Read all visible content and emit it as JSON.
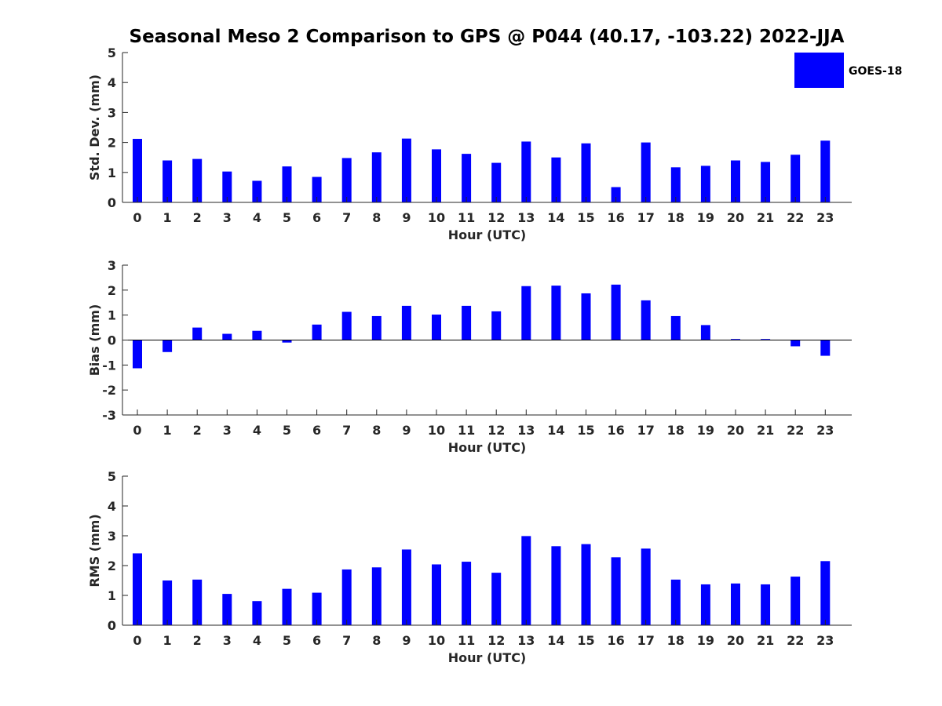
{
  "title": "Seasonal Meso 2 Comparison to GPS @ P044 (40.17, -103.22) 2022-JJA",
  "legend": {
    "label": "GOES-18",
    "color": "#0000ff",
    "placement": "top-right"
  },
  "chart_data": [
    {
      "type": "bar",
      "xlabel": "Hour (UTC)",
      "ylabel": "Std. Dev. (mm)",
      "ylim": [
        0,
        5
      ],
      "yticks": [
        0,
        1,
        2,
        3,
        4,
        5
      ],
      "categories": [
        "0",
        "1",
        "2",
        "3",
        "4",
        "5",
        "6",
        "7",
        "8",
        "9",
        "10",
        "11",
        "12",
        "13",
        "14",
        "15",
        "16",
        "17",
        "18",
        "19",
        "20",
        "21",
        "22",
        "23"
      ],
      "series": [
        {
          "name": "GOES-18",
          "values": [
            2.12,
            1.4,
            1.45,
            1.03,
            0.72,
            1.2,
            0.85,
            1.48,
            1.67,
            2.13,
            1.77,
            1.62,
            1.32,
            2.03,
            1.5,
            1.97,
            0.51,
            2.0,
            1.17,
            1.22,
            1.4,
            1.35,
            1.59,
            2.06
          ]
        }
      ],
      "grid": false
    },
    {
      "type": "bar",
      "xlabel": "Hour (UTC)",
      "ylabel": "Bias (mm)",
      "ylim": [
        -3,
        3
      ],
      "yticks": [
        -3,
        -2,
        -1,
        0,
        1,
        2,
        3
      ],
      "categories": [
        "0",
        "1",
        "2",
        "3",
        "4",
        "5",
        "6",
        "7",
        "8",
        "9",
        "10",
        "11",
        "12",
        "13",
        "14",
        "15",
        "16",
        "17",
        "18",
        "19",
        "20",
        "21",
        "22",
        "23"
      ],
      "series": [
        {
          "name": "GOES-18",
          "values": [
            -1.13,
            -0.48,
            0.5,
            0.25,
            0.37,
            -0.1,
            0.62,
            1.13,
            0.96,
            1.37,
            1.02,
            1.37,
            1.15,
            2.16,
            2.18,
            1.87,
            2.22,
            1.59,
            0.96,
            0.6,
            0.04,
            0.04,
            -0.25,
            -0.63
          ]
        }
      ],
      "grid": false
    },
    {
      "type": "bar",
      "xlabel": "Hour (UTC)",
      "ylabel": "RMS (mm)",
      "ylim": [
        0,
        5
      ],
      "yticks": [
        0,
        1,
        2,
        3,
        4,
        5
      ],
      "categories": [
        "0",
        "1",
        "2",
        "3",
        "4",
        "5",
        "6",
        "7",
        "8",
        "9",
        "10",
        "11",
        "12",
        "13",
        "14",
        "15",
        "16",
        "17",
        "18",
        "19",
        "20",
        "21",
        "22",
        "23"
      ],
      "series": [
        {
          "name": "GOES-18",
          "values": [
            2.41,
            1.5,
            1.53,
            1.05,
            0.81,
            1.22,
            1.09,
            1.87,
            1.94,
            2.54,
            2.04,
            2.13,
            1.76,
            2.99,
            2.65,
            2.72,
            2.28,
            2.57,
            1.53,
            1.37,
            1.4,
            1.37,
            1.63,
            2.15
          ]
        }
      ],
      "grid": false
    }
  ]
}
